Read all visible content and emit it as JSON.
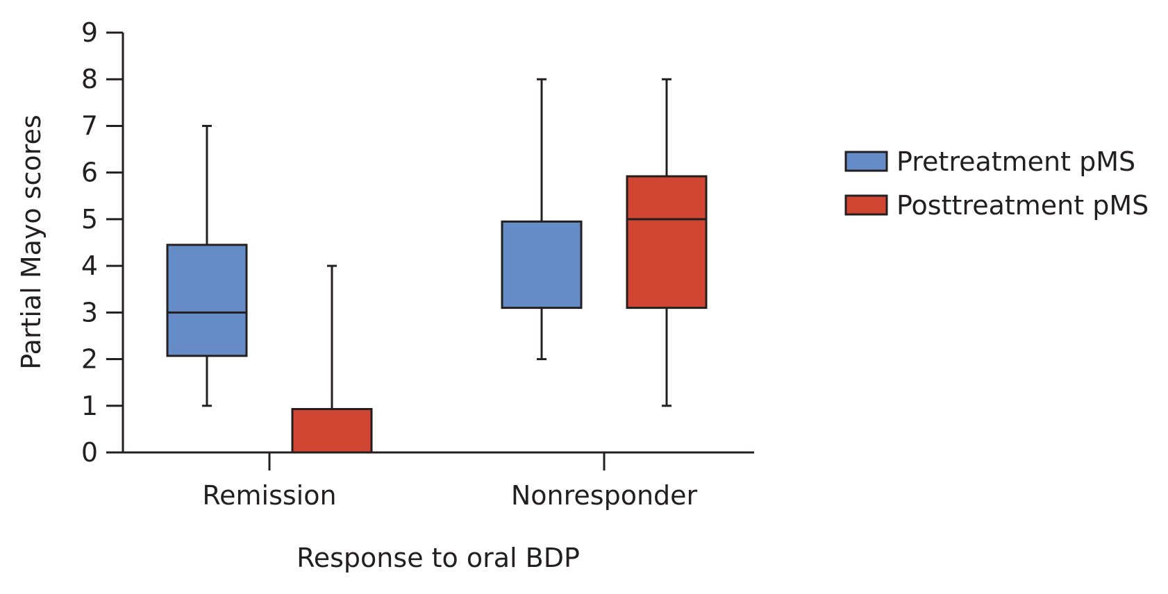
{
  "chart_data": {
    "type": "boxplot",
    "title": "",
    "xlabel": "Response to oral BDP",
    "ylabel": "Partial Mayo scores",
    "ylim": [
      0,
      9
    ],
    "yticks": [
      "0",
      "1",
      "2",
      "3",
      "4",
      "5",
      "6",
      "7",
      "8",
      "9"
    ],
    "categories": [
      "Remission",
      "Nonresponder"
    ],
    "legend_position": "right",
    "series": [
      {
        "name": "Pretreatment pMS",
        "color": "#658cc6",
        "boxes": [
          {
            "category": "Remission",
            "min": 1,
            "q1": 2.07,
            "median": 3,
            "q3": 4.45,
            "max": 7
          },
          {
            "category": "Nonresponder",
            "min": 2,
            "q1": 3.1,
            "median": null,
            "q3": 4.95,
            "max": 8
          }
        ]
      },
      {
        "name": "Posttreatment pMS",
        "color": "#d04632",
        "boxes": [
          {
            "category": "Remission",
            "min": 0,
            "q1": 0,
            "median": 0,
            "q3": 0.93,
            "max": 4
          },
          {
            "category": "Nonresponder",
            "min": 1,
            "q1": 3.1,
            "median": 5,
            "q3": 5.92,
            "max": 8
          }
        ]
      }
    ]
  }
}
